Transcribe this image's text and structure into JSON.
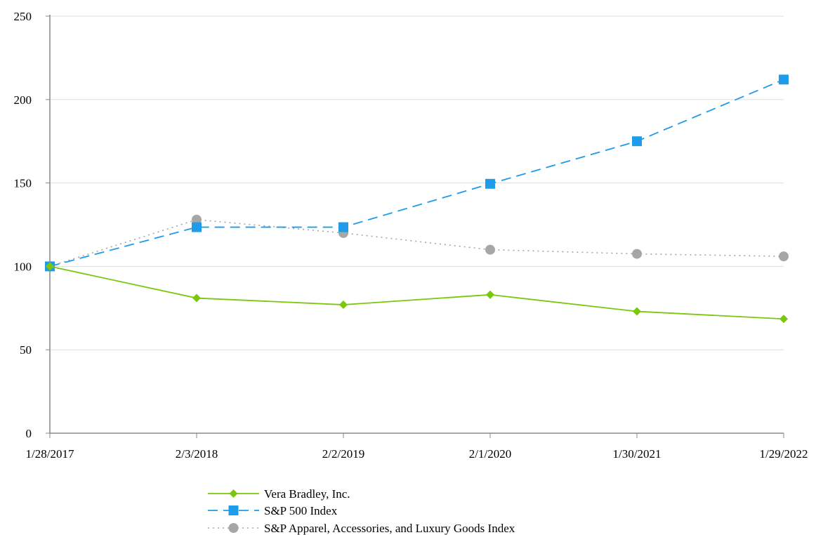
{
  "chart_data": {
    "type": "line",
    "title": "",
    "xlabel": "",
    "ylabel": "",
    "categories": [
      "1/28/2017",
      "2/3/2018",
      "2/2/2019",
      "2/1/2020",
      "1/30/2021",
      "1/29/2022"
    ],
    "ylim": [
      0,
      250
    ],
    "yticks": [
      0,
      50,
      100,
      150,
      200,
      250
    ],
    "grid": "horizontal",
    "legend_position": "bottom",
    "series": [
      {
        "name": "Vera Bradley, Inc.",
        "values": [
          100,
          81,
          77,
          83,
          73,
          68.5
        ],
        "color": "#7ac70c",
        "marker": "diamond",
        "line_style": "solid"
      },
      {
        "name": "S&P 500 Index",
        "values": [
          100,
          123.5,
          123.5,
          149.5,
          175,
          212
        ],
        "color": "#1e9be9",
        "marker": "square",
        "line_style": "dashed"
      },
      {
        "name": "S&P Apparel, Accessories, and Luxury Goods Index",
        "values": [
          100,
          128,
          120,
          110,
          107.5,
          106
        ],
        "color": "#a6a6a6",
        "marker": "circle",
        "line_style": "dotted"
      }
    ]
  }
}
